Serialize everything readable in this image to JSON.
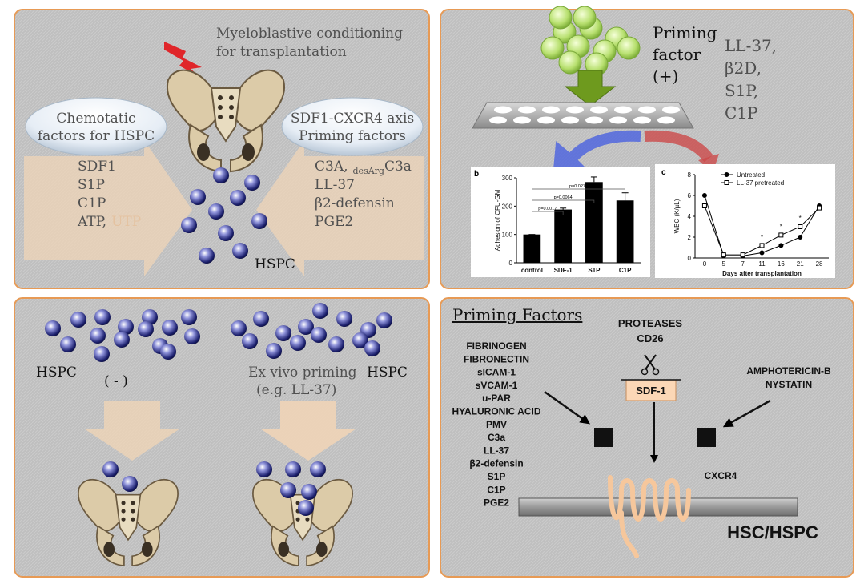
{
  "conditioning": {
    "lines": [
      "Myeloblastive conditioning",
      "for transplantation"
    ]
  },
  "chemotactic": {
    "bubble": [
      "Chemotatic",
      "factors for HSPC"
    ],
    "factors": [
      "SDF1",
      "S1P",
      "C1P"
    ],
    "last_line": [
      "ATP,",
      "UTP"
    ]
  },
  "priming_axis": {
    "bubble": [
      "SDF1-CXCR4 axis",
      "Priming factors"
    ],
    "first_line": [
      "C3A,",
      "desArg",
      "C3a"
    ],
    "factors": [
      "LL-37",
      "β2-defensin",
      "PGE2"
    ]
  },
  "hspc_label": "HSPC",
  "priming": {
    "label": [
      "Priming",
      "factor",
      "(+)"
    ],
    "factors": [
      "LL-37,",
      "β2D,",
      "S1P,",
      "C1P"
    ]
  },
  "chart_data": [
    {
      "type": "bar",
      "panel_label": "b",
      "y_label": "Adhesion of CFU-GM",
      "categories": [
        "control",
        "SDF-1",
        "S1P",
        "C1P"
      ],
      "values": [
        100,
        188,
        285,
        220
      ],
      "errors": [
        0,
        5,
        18,
        27
      ],
      "color": "#000000",
      "ylim": [
        0,
        300
      ],
      "yticks": [
        0,
        100,
        200,
        300
      ],
      "annotations": [
        "p=0.0017",
        "p=0.0064",
        "p=0.0275"
      ]
    },
    {
      "type": "line",
      "panel_label": "c",
      "y_label": "WBC (K/µL)",
      "x_label": "Days after transplantation",
      "categories": [
        "0",
        "5",
        "7",
        "11",
        "16",
        "21",
        "28"
      ],
      "series": [
        {
          "name": "Untreated",
          "color": "#000000",
          "values": [
            6,
            0.2,
            0.2,
            0.5,
            1.2,
            2,
            5
          ]
        },
        {
          "name": "LL-37 pretreated",
          "color": "#ffffff",
          "values": [
            5,
            0.3,
            0.3,
            1.2,
            2.2,
            3,
            4.8
          ]
        }
      ],
      "ylim": [
        0,
        8
      ],
      "yticks": [
        0,
        2,
        4,
        6,
        8
      ],
      "annotations": [
        "*",
        "*",
        "*"
      ]
    }
  ],
  "comparison": {
    "left_label": "HSPC",
    "left_sign": "( - )",
    "right_lines": [
      "Ex vivo priming",
      "(e.g. LL-37)"
    ],
    "right_label": "HSPC"
  },
  "mechanism": {
    "title": "Priming Factors",
    "proteases": [
      "PROTEASES",
      "CD26"
    ],
    "sdf1": "SDF-1",
    "factors": [
      "FIBRINOGEN",
      "FIBRONECTIN",
      "sICAM-1",
      "sVCAM-1",
      "u-PAR",
      "HYALURONIC ACID",
      "PMV",
      "C3a",
      "LL-37",
      "β2-defensin",
      "S1P",
      "C1P",
      "PGE2"
    ],
    "antifungals": [
      "AMPHOTERICIN-B",
      "NYSTATIN"
    ],
    "receptor": "CXCR4",
    "cell": "HSC/HSPC"
  }
}
